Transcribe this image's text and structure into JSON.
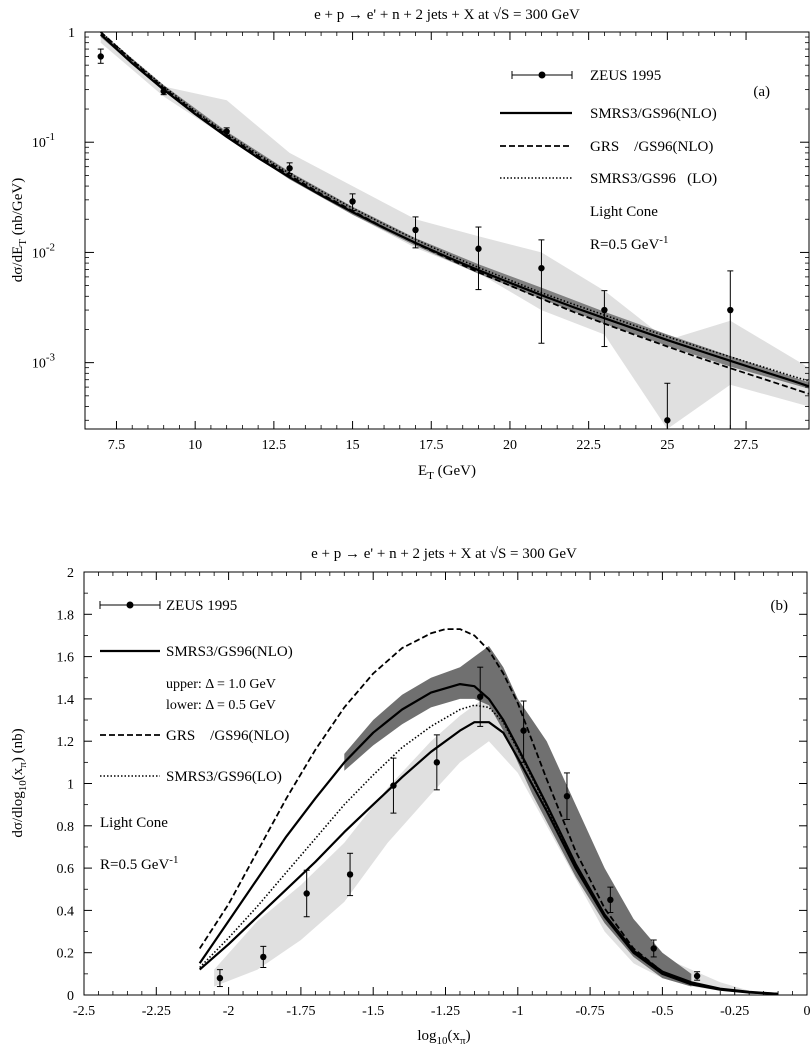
{
  "chart_data": [
    {
      "type": "line",
      "panel": "(a)",
      "title": "e + p → e' + n + 2 jets + X at √S = 300 GeV",
      "xlabel": "E_T (GeV)",
      "ylabel": "dσ/dE_T (nb/GeV)",
      "xlim": [
        6.5,
        29.5
      ],
      "ylim": [
        0.00025,
        1.0
      ],
      "yscale": "log",
      "xticks": [
        7.5,
        10,
        12.5,
        15,
        17.5,
        20,
        22.5,
        25,
        27.5
      ],
      "xtick_labels": [
        "7.5",
        "10",
        "12.5",
        "15",
        "17.5",
        "20",
        "22.5",
        "25",
        "27.5"
      ],
      "yticks": [
        {
          "value": 1,
          "base": "1",
          "exp": ""
        },
        {
          "value": 0.1,
          "base": "10",
          "exp": "-1"
        },
        {
          "value": 0.01,
          "base": "10",
          "exp": "-2"
        },
        {
          "value": 0.001,
          "base": "10",
          "exp": "-3"
        }
      ],
      "legend_position": "top-right",
      "legend_texts": [
        "Light Cone",
        "R=0.5 GeV"
      ],
      "legend_sup": "-1",
      "series": [
        {
          "name": "ZEUS 1995",
          "style": "points",
          "x": [
            7,
            9,
            11,
            13,
            15,
            17,
            19,
            21,
            23,
            25,
            27
          ],
          "y": [
            0.6,
            0.29,
            0.125,
            0.058,
            0.029,
            0.016,
            0.0108,
            0.0072,
            0.003,
            0.0003,
            0.003
          ],
          "ylow": [
            0.52,
            0.27,
            0.115,
            0.052,
            0.024,
            0.011,
            0.0046,
            0.0015,
            0.0014,
            0.00025,
            0.00025
          ],
          "yhigh": [
            0.7,
            0.31,
            0.135,
            0.065,
            0.034,
            0.021,
            0.017,
            0.013,
            0.0045,
            0.00065,
            0.0068
          ]
        },
        {
          "name": "SMRS3/GS96(NLO)",
          "style": "solid",
          "x": [
            7,
            8,
            9,
            10,
            11,
            12,
            13,
            14,
            15,
            16,
            17,
            18,
            19,
            20,
            21,
            22,
            23,
            24,
            25,
            26,
            27,
            28,
            29,
            29.5
          ],
          "y": [
            0.95,
            0.52,
            0.3,
            0.18,
            0.112,
            0.072,
            0.048,
            0.033,
            0.0232,
            0.0167,
            0.0122,
            0.0091,
            0.0069,
            0.0053,
            0.0041,
            0.0032,
            0.00253,
            0.00201,
            0.0016,
            0.00129,
            0.00104,
            0.00084,
            0.00068,
            0.00061
          ]
        },
        {
          "name": "GRS    /GS96(NLO)",
          "style": "dashed",
          "x": [
            7,
            8,
            9,
            10,
            11,
            12,
            13,
            14,
            15,
            16,
            17,
            18,
            19,
            20,
            21,
            22,
            23,
            24,
            25,
            26,
            27,
            28,
            29,
            29.5
          ],
          "y": [
            1.0,
            0.55,
            0.31,
            0.186,
            0.116,
            0.075,
            0.05,
            0.034,
            0.0238,
            0.0168,
            0.0121,
            0.0089,
            0.0066,
            0.005,
            0.0038,
            0.0029,
            0.00226,
            0.00177,
            0.0014,
            0.00111,
            0.00089,
            0.00072,
            0.00058,
            0.00052
          ]
        },
        {
          "name": "SMRS3/GS96   (LO)",
          "style": "dotted",
          "x": [
            7,
            8,
            9,
            10,
            11,
            12,
            13,
            14,
            15,
            16,
            17,
            18,
            19,
            20,
            21,
            22,
            23,
            24,
            25,
            26,
            27,
            28,
            29,
            29.5
          ],
          "y": [
            1.0,
            0.56,
            0.32,
            0.192,
            0.12,
            0.078,
            0.052,
            0.036,
            0.0252,
            0.018,
            0.0131,
            0.0097,
            0.0073,
            0.0056,
            0.0043,
            0.0034,
            0.0027,
            0.00215,
            0.00172,
            0.00139,
            0.00113,
            0.00092,
            0.00075,
            0.00068
          ]
        }
      ],
      "bands": [
        {
          "fill": "#e0e0e0",
          "x": [
            7,
            9,
            11,
            13,
            15,
            17,
            19,
            21,
            23,
            25,
            27,
            29.5
          ],
          "upper": [
            0.9,
            0.32,
            0.24,
            0.08,
            0.04,
            0.02,
            0.014,
            0.01,
            0.0045,
            0.0016,
            0.0024,
            0.0009
          ],
          "lower": [
            0.8,
            0.26,
            0.11,
            0.048,
            0.022,
            0.011,
            0.0065,
            0.003,
            0.0018,
            0.00025,
            0.00063,
            0.0004
          ]
        },
        {
          "fill": "#808080",
          "x": [
            7,
            9,
            11,
            13,
            15,
            17,
            19,
            21,
            23,
            25,
            27,
            29.5
          ],
          "upper": [
            1.0,
            0.33,
            0.125,
            0.054,
            0.026,
            0.0135,
            0.0078,
            0.0048,
            0.0029,
            0.0018,
            0.00115,
            0.00066
          ],
          "lower": [
            0.9,
            0.29,
            0.11,
            0.046,
            0.022,
            0.0115,
            0.0064,
            0.0038,
            0.00225,
            0.00142,
            0.00092,
            0.00058
          ]
        }
      ]
    },
    {
      "type": "line",
      "panel": "(b)",
      "title": "e + p → e' + n + 2 jets + X at √S = 300 GeV",
      "xlabel": "log10(xπ)",
      "ylabel": "dσ/dlog10(xπ) (nb)",
      "xlim": [
        -2.5,
        0
      ],
      "ylim": [
        0,
        2
      ],
      "xticks": [
        -2.5,
        -2.25,
        -2,
        -1.75,
        -1.5,
        -1.25,
        -1,
        -0.75,
        -0.5,
        -0.25,
        0
      ],
      "xtick_labels": [
        "-2.5",
        "-2.25",
        "-2",
        "-1.75",
        "-1.5",
        "-1.25",
        "-1",
        "-0.75",
        "-0.5",
        "-0.25",
        "0"
      ],
      "yticks": [
        0,
        0.2,
        0.4,
        0.6,
        0.8,
        1,
        1.2,
        1.4,
        1.6,
        1.8,
        2
      ],
      "ytick_labels": [
        "0",
        "0.2",
        "0.4",
        "0.6",
        "0.8",
        "1",
        "1.2",
        "1.4",
        "1.6",
        "1.8",
        "2"
      ],
      "legend_position": "top-left",
      "legend_texts": [
        "upper: Δ = 1.0 GeV",
        "lower: Δ = 0.5 GeV",
        "Light Cone",
        "R=0.5 GeV"
      ],
      "legend_sup": "-1",
      "series": [
        {
          "name": "ZEUS 1995",
          "style": "points",
          "x": [
            -2.03,
            -1.88,
            -1.73,
            -1.58,
            -1.43,
            -1.28,
            -1.13,
            -0.98,
            -0.83,
            -0.68,
            -0.53,
            -0.38
          ],
          "y": [
            0.08,
            0.18,
            0.48,
            0.57,
            0.99,
            1.1,
            1.41,
            1.25,
            0.94,
            0.45,
            0.22,
            0.09
          ],
          "ylow": [
            0.04,
            0.13,
            0.37,
            0.47,
            0.86,
            0.97,
            1.27,
            1.1,
            0.83,
            0.39,
            0.18,
            0.07
          ],
          "yhigh": [
            0.12,
            0.23,
            0.59,
            0.67,
            1.12,
            1.23,
            1.55,
            1.39,
            1.05,
            0.51,
            0.26,
            0.11
          ]
        },
        {
          "name": "SMRS3/GS96(NLO) upper",
          "style": "solid",
          "x": [
            -2.1,
            -2.0,
            -1.9,
            -1.8,
            -1.7,
            -1.6,
            -1.5,
            -1.4,
            -1.3,
            -1.2,
            -1.15,
            -1.1,
            -1.05,
            -1.0,
            -0.9,
            -0.8,
            -0.7,
            -0.6,
            -0.5,
            -0.4,
            -0.3,
            -0.2,
            -0.1
          ],
          "y": [
            0.15,
            0.35,
            0.55,
            0.75,
            0.93,
            1.1,
            1.24,
            1.35,
            1.43,
            1.47,
            1.46,
            1.4,
            1.3,
            1.17,
            0.9,
            0.62,
            0.38,
            0.21,
            0.11,
            0.06,
            0.03,
            0.015,
            0.005
          ]
        },
        {
          "name": "SMRS3/GS96(NLO) lower",
          "style": "solid",
          "x": [
            -2.1,
            -2.0,
            -1.9,
            -1.8,
            -1.7,
            -1.6,
            -1.5,
            -1.4,
            -1.3,
            -1.2,
            -1.15,
            -1.1,
            -1.05,
            -1.0,
            -0.9,
            -0.8,
            -0.7,
            -0.6,
            -0.5,
            -0.4,
            -0.3,
            -0.2,
            -0.1
          ],
          "y": [
            0.12,
            0.24,
            0.37,
            0.5,
            0.63,
            0.77,
            0.9,
            1.03,
            1.15,
            1.25,
            1.29,
            1.29,
            1.24,
            1.12,
            0.87,
            0.6,
            0.37,
            0.2,
            0.1,
            0.05,
            0.025,
            0.012,
            0.005
          ]
        },
        {
          "name": "GRS    /GS96(NLO)",
          "style": "dashed",
          "x": [
            -2.1,
            -2.0,
            -1.9,
            -1.8,
            -1.7,
            -1.6,
            -1.5,
            -1.4,
            -1.3,
            -1.25,
            -1.2,
            -1.15,
            -1.1,
            -1.05,
            -1.0,
            -0.9,
            -0.8,
            -0.7,
            -0.6,
            -0.5,
            -0.4,
            -0.3,
            -0.2,
            -0.1
          ],
          "y": [
            0.22,
            0.43,
            0.68,
            0.93,
            1.16,
            1.36,
            1.52,
            1.64,
            1.71,
            1.73,
            1.73,
            1.7,
            1.63,
            1.52,
            1.38,
            1.02,
            0.68,
            0.41,
            0.22,
            0.11,
            0.055,
            0.028,
            0.013,
            0.005
          ]
        },
        {
          "name": "SMRS3/GS96(LO)",
          "style": "dotted",
          "x": [
            -2.1,
            -2.0,
            -1.9,
            -1.8,
            -1.7,
            -1.6,
            -1.5,
            -1.4,
            -1.3,
            -1.2,
            -1.15,
            -1.1,
            -1.05,
            -1.0,
            -0.9,
            -0.8,
            -0.7,
            -0.6,
            -0.5,
            -0.4,
            -0.3,
            -0.2,
            -0.1
          ],
          "y": [
            0.13,
            0.27,
            0.42,
            0.58,
            0.74,
            0.9,
            1.04,
            1.17,
            1.27,
            1.35,
            1.37,
            1.36,
            1.29,
            1.16,
            0.89,
            0.61,
            0.37,
            0.2,
            0.1,
            0.05,
            0.025,
            0.012,
            0.005
          ]
        }
      ],
      "bands": [
        {
          "fill": "#e0e0e0",
          "x": [
            -2.05,
            -1.9,
            -1.75,
            -1.6,
            -1.45,
            -1.3,
            -1.2,
            -1.1,
            -1.0,
            -0.9,
            -0.8,
            -0.7,
            -0.6,
            -0.5,
            -0.4,
            -0.3,
            -0.2
          ],
          "upper": [
            0.12,
            0.35,
            0.52,
            0.72,
            0.98,
            1.2,
            1.32,
            1.42,
            1.3,
            1.0,
            0.74,
            0.45,
            0.3,
            0.18,
            0.12,
            0.06,
            0.02
          ],
          "lower": [
            0.04,
            0.12,
            0.26,
            0.44,
            0.72,
            0.95,
            1.1,
            1.2,
            1.05,
            0.8,
            0.55,
            0.3,
            0.15,
            0.08,
            0.04,
            0.02,
            0.01
          ]
        },
        {
          "fill": "#707070",
          "x": [
            -1.6,
            -1.5,
            -1.4,
            -1.3,
            -1.2,
            -1.15,
            -1.1,
            -1.05,
            -1.0,
            -0.95,
            -0.9,
            -0.8,
            -0.7,
            -0.6,
            -0.5,
            -0.4
          ],
          "upper": [
            1.14,
            1.3,
            1.42,
            1.5,
            1.55,
            1.6,
            1.65,
            1.55,
            1.4,
            1.3,
            1.2,
            0.9,
            0.6,
            0.36,
            0.2,
            0.1
          ],
          "lower": [
            1.06,
            1.18,
            1.28,
            1.36,
            1.4,
            1.4,
            1.37,
            1.25,
            1.1,
            0.95,
            0.82,
            0.56,
            0.34,
            0.18,
            0.08,
            0.04
          ]
        }
      ]
    }
  ]
}
